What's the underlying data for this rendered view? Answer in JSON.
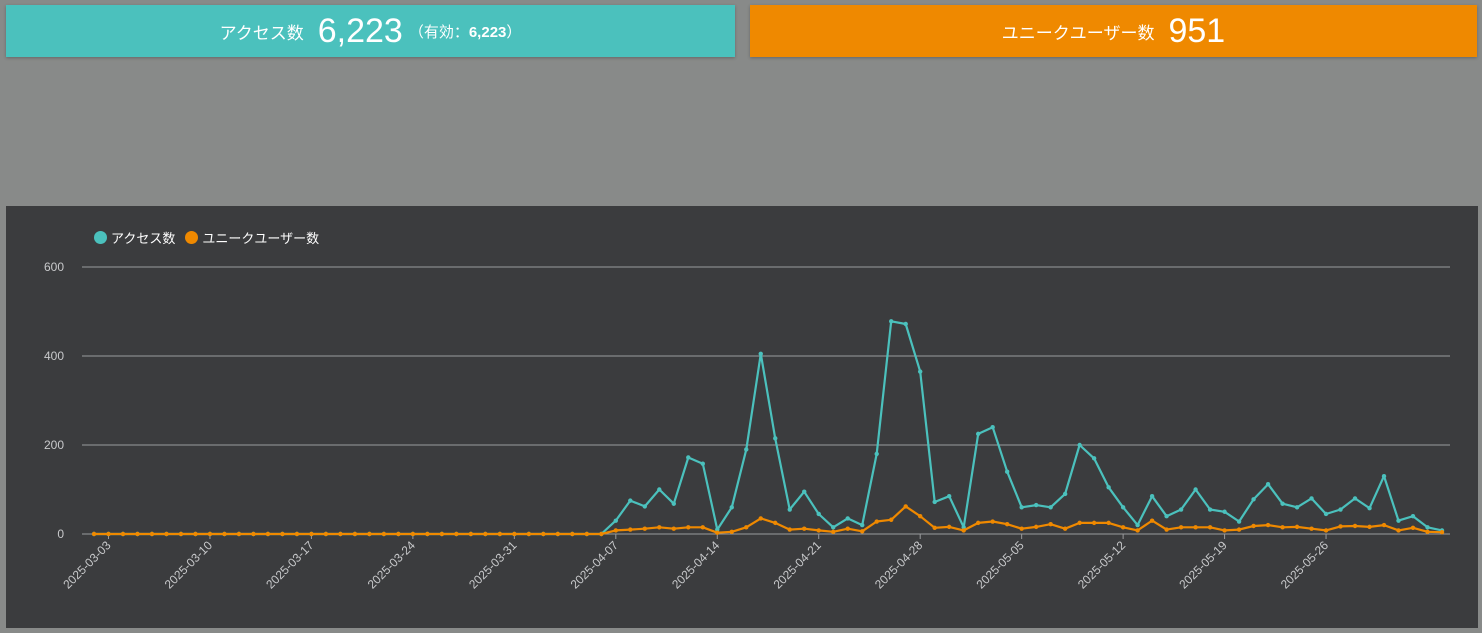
{
  "cards": {
    "access": {
      "label": "アクセス数",
      "value": "6,223",
      "sub_open": "（有効：",
      "sub_value": "6,223",
      "sub_close": "）",
      "color": "#4bc1bd"
    },
    "unique": {
      "label": "ユニークユーザー数",
      "value": "951",
      "color": "#ef8900"
    }
  },
  "colors": {
    "background": "#888a89",
    "panel": "#3b3c3e",
    "grid": "#9a9b9d",
    "text": "#c8c9cb"
  },
  "chart_data": {
    "type": "line",
    "title": "",
    "xlabel": "",
    "ylabel": "",
    "ylim": [
      0,
      600
    ],
    "y_ticks": [
      0,
      200,
      400,
      600
    ],
    "grid": true,
    "legend_position": "top-left",
    "x_start": "2025-03-02",
    "x_tick_labels": [
      "2025-03-03",
      "2025-03-10",
      "2025-03-17",
      "2025-03-24",
      "2025-03-31",
      "2025-04-07",
      "2025-04-14",
      "2025-04-21",
      "2025-04-28",
      "2025-05-05",
      "2025-05-12",
      "2025-05-19",
      "2025-05-26"
    ],
    "series": [
      {
        "name": "アクセス数",
        "color": "#4bc1bd",
        "values": [
          0,
          0,
          0,
          0,
          0,
          0,
          0,
          0,
          0,
          0,
          0,
          0,
          0,
          0,
          0,
          0,
          0,
          0,
          0,
          0,
          0,
          0,
          0,
          0,
          0,
          0,
          0,
          0,
          0,
          0,
          0,
          0,
          0,
          0,
          0,
          0,
          30,
          75,
          62,
          100,
          68,
          172,
          158,
          10,
          60,
          190,
          405,
          215,
          55,
          95,
          45,
          15,
          35,
          20,
          180,
          478,
          472,
          365,
          72,
          85,
          15,
          225,
          240,
          140,
          60,
          65,
          60,
          90,
          200,
          170,
          105,
          60,
          20,
          85,
          40,
          55,
          100,
          55,
          50,
          28,
          78,
          112,
          68,
          60,
          80,
          45,
          55,
          80,
          58,
          130,
          30,
          40,
          15,
          8
        ],
        "ylim": [
          0,
          600
        ]
      },
      {
        "name": "ユニークユーザー数",
        "color": "#ef8900",
        "values": [
          0,
          0,
          0,
          0,
          0,
          0,
          0,
          0,
          0,
          0,
          0,
          0,
          0,
          0,
          0,
          0,
          0,
          0,
          0,
          0,
          0,
          0,
          0,
          0,
          0,
          0,
          0,
          0,
          0,
          0,
          0,
          0,
          0,
          0,
          0,
          0,
          8,
          10,
          12,
          15,
          12,
          15,
          15,
          3,
          5,
          15,
          35,
          25,
          10,
          12,
          8,
          5,
          12,
          6,
          28,
          32,
          62,
          40,
          14,
          16,
          8,
          25,
          28,
          22,
          12,
          16,
          22,
          12,
          25,
          25,
          25,
          15,
          8,
          30,
          10,
          15,
          15,
          15,
          8,
          10,
          18,
          20,
          15,
          16,
          12,
          8,
          17,
          18,
          16,
          20,
          8,
          14,
          5,
          4
        ]
      }
    ]
  }
}
